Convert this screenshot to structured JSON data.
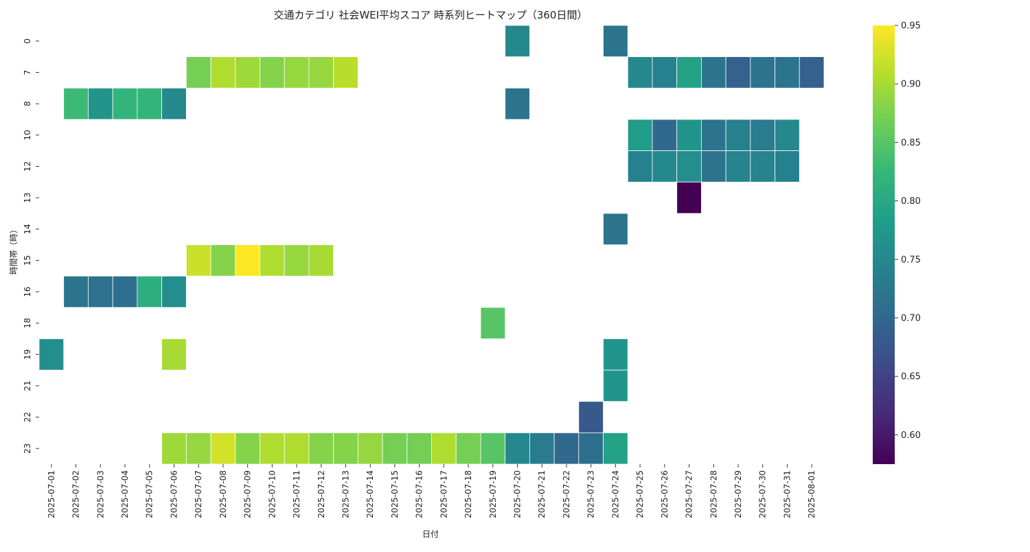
{
  "chart_data": {
    "type": "heatmap",
    "title": "交通カテゴリ 社会WEI平均スコア 時系列ヒートマップ（360日間）",
    "xlabel": "日付",
    "ylabel": "時間帯（時）",
    "x_categories": [
      "2025-07-01",
      "2025-07-02",
      "2025-07-03",
      "2025-07-04",
      "2025-07-05",
      "2025-07-06",
      "2025-07-07",
      "2025-07-08",
      "2025-07-09",
      "2025-07-10",
      "2025-07-11",
      "2025-07-12",
      "2025-07-13",
      "2025-07-14",
      "2025-07-15",
      "2025-07-16",
      "2025-07-17",
      "2025-07-18",
      "2025-07-19",
      "2025-07-20",
      "2025-07-21",
      "2025-07-22",
      "2025-07-23",
      "2025-07-24",
      "2025-07-25",
      "2025-07-26",
      "2025-07-27",
      "2025-07-28",
      "2025-07-29",
      "2025-07-30",
      "2025-07-31",
      "2025-08-01"
    ],
    "y_categories": [
      "0",
      "7",
      "8",
      "10",
      "12",
      "13",
      "14",
      "15",
      "16",
      "18",
      "19",
      "21",
      "22",
      "23"
    ],
    "colormap": "viridis",
    "colorbar": {
      "min": 0.575,
      "max": 0.95,
      "ticks": [
        0.6,
        0.65,
        0.7,
        0.75,
        0.8,
        0.85,
        0.9,
        0.95
      ]
    },
    "values": [
      [
        null,
        null,
        null,
        null,
        null,
        null,
        null,
        null,
        null,
        null,
        null,
        null,
        null,
        null,
        null,
        null,
        null,
        null,
        null,
        0.75,
        null,
        null,
        null,
        0.72,
        null,
        null,
        null,
        null,
        null,
        null,
        null,
        null
      ],
      [
        null,
        null,
        null,
        null,
        null,
        null,
        0.87,
        0.905,
        0.895,
        0.88,
        0.89,
        0.89,
        0.91,
        null,
        null,
        null,
        null,
        null,
        null,
        null,
        null,
        null,
        null,
        null,
        0.75,
        0.74,
        0.79,
        0.72,
        0.69,
        0.72,
        0.72,
        0.69
      ],
      [
        null,
        0.83,
        0.77,
        0.82,
        0.82,
        0.75,
        null,
        null,
        null,
        null,
        null,
        null,
        null,
        null,
        null,
        null,
        null,
        null,
        null,
        0.72,
        null,
        null,
        null,
        null,
        null,
        null,
        null,
        null,
        null,
        null,
        null,
        null
      ],
      [
        null,
        null,
        null,
        null,
        null,
        null,
        null,
        null,
        null,
        null,
        null,
        null,
        null,
        null,
        null,
        null,
        null,
        null,
        null,
        null,
        null,
        null,
        null,
        null,
        0.78,
        0.7,
        0.77,
        0.72,
        0.74,
        0.73,
        0.75,
        null
      ],
      [
        null,
        null,
        null,
        null,
        null,
        null,
        null,
        null,
        null,
        null,
        null,
        null,
        null,
        null,
        null,
        null,
        null,
        null,
        null,
        null,
        null,
        null,
        null,
        null,
        0.74,
        0.75,
        0.76,
        0.72,
        0.745,
        0.745,
        0.74,
        null
      ],
      [
        null,
        null,
        null,
        null,
        null,
        null,
        null,
        null,
        null,
        null,
        null,
        null,
        null,
        null,
        null,
        null,
        null,
        null,
        null,
        null,
        null,
        null,
        null,
        null,
        null,
        null,
        0.575,
        null,
        null,
        null,
        null,
        null
      ],
      [
        null,
        null,
        null,
        null,
        null,
        null,
        null,
        null,
        null,
        null,
        null,
        null,
        null,
        null,
        null,
        null,
        null,
        null,
        null,
        null,
        null,
        null,
        null,
        0.72,
        null,
        null,
        null,
        null,
        null,
        null,
        null,
        null
      ],
      [
        null,
        null,
        null,
        null,
        null,
        null,
        0.92,
        0.88,
        0.95,
        0.905,
        0.89,
        0.9,
        null,
        null,
        null,
        null,
        null,
        null,
        null,
        null,
        null,
        null,
        null,
        null,
        null,
        null,
        null,
        null,
        null,
        null,
        null,
        null
      ],
      [
        null,
        0.72,
        0.715,
        0.71,
        0.81,
        0.76,
        null,
        null,
        null,
        null,
        null,
        null,
        null,
        null,
        null,
        null,
        null,
        null,
        null,
        null,
        null,
        null,
        null,
        null,
        null,
        null,
        null,
        null,
        null,
        null,
        null,
        null
      ],
      [
        null,
        null,
        null,
        null,
        null,
        null,
        null,
        null,
        null,
        null,
        null,
        null,
        null,
        null,
        null,
        null,
        null,
        null,
        0.85,
        null,
        null,
        null,
        null,
        null,
        null,
        null,
        null,
        null,
        null,
        null,
        null,
        null
      ],
      [
        0.76,
        null,
        null,
        null,
        null,
        0.9,
        null,
        null,
        null,
        null,
        null,
        null,
        null,
        null,
        null,
        null,
        null,
        null,
        null,
        null,
        null,
        null,
        null,
        0.77,
        null,
        null,
        null,
        null,
        null,
        null,
        null,
        null
      ],
      [
        null,
        null,
        null,
        null,
        null,
        null,
        null,
        null,
        null,
        null,
        null,
        null,
        null,
        null,
        null,
        null,
        null,
        null,
        null,
        null,
        null,
        null,
        null,
        0.77,
        null,
        null,
        null,
        null,
        null,
        null,
        null,
        null
      ],
      [
        null,
        null,
        null,
        null,
        null,
        null,
        null,
        null,
        null,
        null,
        null,
        null,
        null,
        null,
        null,
        null,
        null,
        null,
        null,
        null,
        null,
        null,
        0.68,
        null,
        null,
        null,
        null,
        null,
        null,
        null,
        null,
        null
      ],
      [
        null,
        null,
        null,
        null,
        null,
        0.895,
        0.89,
        0.925,
        0.88,
        0.905,
        0.905,
        0.88,
        0.88,
        0.89,
        0.87,
        0.87,
        0.905,
        0.87,
        0.85,
        0.75,
        0.73,
        0.7,
        0.71,
        0.79,
        null,
        null,
        null,
        null,
        null,
        null,
        null,
        null
      ]
    ]
  }
}
